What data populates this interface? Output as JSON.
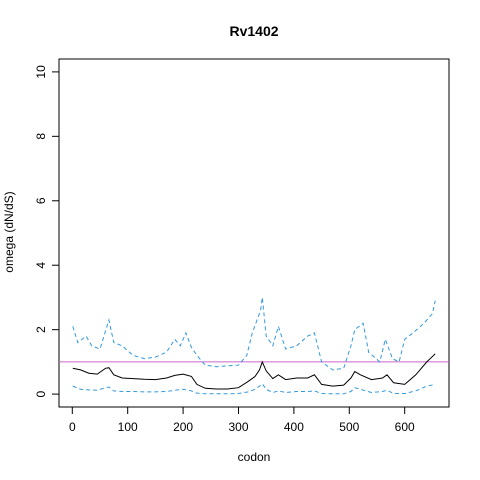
{
  "chart_data": {
    "type": "line",
    "title": "Rv1402",
    "xlabel": "codon",
    "ylabel": "omega (dN/dS)",
    "xlim": [
      -24,
      680
    ],
    "ylim": [
      -0.4,
      10.4
    ],
    "xticks": [
      0,
      100,
      200,
      300,
      400,
      500,
      600
    ],
    "yticks": [
      0,
      2,
      4,
      6,
      8,
      10
    ],
    "reference_line": {
      "y": 1,
      "color": "#cc66cc"
    },
    "colors": {
      "omega": "#000000",
      "ci": "#3399dd"
    },
    "series": [
      {
        "style": "solid",
        "x": [
          1,
          15,
          30,
          45,
          60,
          66,
          75,
          90,
          110,
          130,
          150,
          170,
          185,
          200,
          215,
          225,
          240,
          260,
          280,
          300,
          318,
          330,
          338,
          343,
          350,
          362,
          372,
          385,
          405,
          425,
          437,
          450,
          470,
          490,
          503,
          510,
          520,
          540,
          560,
          568,
          580,
          600,
          620,
          640,
          655
        ],
        "y": [
          0.8,
          0.75,
          0.65,
          0.62,
          0.8,
          0.82,
          0.6,
          0.5,
          0.48,
          0.46,
          0.45,
          0.5,
          0.58,
          0.62,
          0.55,
          0.3,
          0.18,
          0.16,
          0.16,
          0.2,
          0.4,
          0.55,
          0.75,
          1.0,
          0.72,
          0.48,
          0.6,
          0.45,
          0.5,
          0.5,
          0.6,
          0.3,
          0.25,
          0.28,
          0.5,
          0.7,
          0.6,
          0.45,
          0.5,
          0.6,
          0.35,
          0.3,
          0.6,
          1.0,
          1.25
        ]
      },
      {
        "style": "dashed",
        "x": [
          1,
          10,
          25,
          35,
          50,
          66,
          75,
          90,
          110,
          130,
          150,
          170,
          185,
          195,
          205,
          215,
          225,
          240,
          260,
          280,
          300,
          315,
          325,
          340,
          343,
          350,
          362,
          372,
          385,
          405,
          425,
          437,
          450,
          470,
          490,
          503,
          510,
          525,
          535,
          555,
          565,
          578,
          590,
          600,
          615,
          635,
          650,
          655
        ],
        "y": [
          2.1,
          1.6,
          1.8,
          1.5,
          1.4,
          2.3,
          1.6,
          1.5,
          1.2,
          1.1,
          1.15,
          1.3,
          1.7,
          1.5,
          1.9,
          1.45,
          1.2,
          0.9,
          0.85,
          0.88,
          0.9,
          1.2,
          1.9,
          2.6,
          3.0,
          1.8,
          1.5,
          2.1,
          1.4,
          1.5,
          1.8,
          1.9,
          1.0,
          0.75,
          0.8,
          1.5,
          2.0,
          2.2,
          1.3,
          1.0,
          1.7,
          1.1,
          1.0,
          1.7,
          1.9,
          2.2,
          2.5,
          2.9
        ]
      },
      {
        "style": "dashed",
        "x": [
          1,
          15,
          30,
          45,
          60,
          66,
          75,
          90,
          110,
          130,
          150,
          170,
          185,
          200,
          215,
          225,
          240,
          260,
          280,
          300,
          318,
          330,
          338,
          343,
          350,
          362,
          372,
          385,
          405,
          425,
          437,
          450,
          470,
          490,
          503,
          510,
          520,
          540,
          560,
          568,
          580,
          600,
          620,
          640,
          655
        ],
        "y": [
          0.25,
          0.15,
          0.13,
          0.12,
          0.2,
          0.22,
          0.1,
          0.08,
          0.08,
          0.07,
          0.07,
          0.08,
          0.12,
          0.15,
          0.1,
          0.03,
          0.01,
          0.01,
          0.01,
          0.02,
          0.07,
          0.15,
          0.25,
          0.32,
          0.15,
          0.05,
          0.1,
          0.05,
          0.08,
          0.08,
          0.1,
          0.02,
          0.01,
          0.01,
          0.08,
          0.2,
          0.15,
          0.05,
          0.08,
          0.12,
          0.02,
          0.02,
          0.1,
          0.25,
          0.3
        ]
      }
    ]
  }
}
